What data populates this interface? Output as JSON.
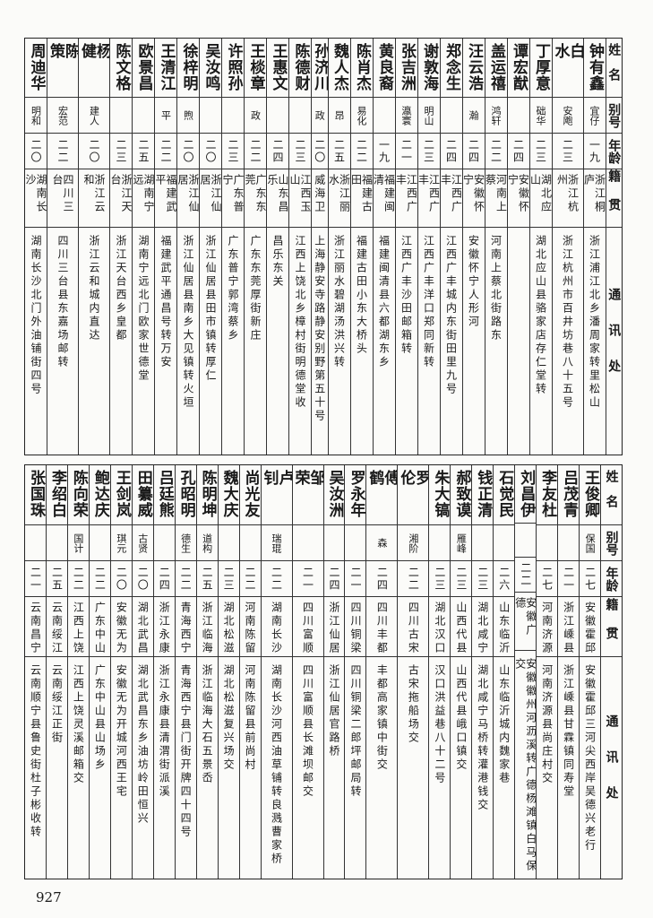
{
  "headers": {
    "name": "姓名",
    "alias": "别号",
    "age": "年龄",
    "origin": "籍贯",
    "address": "通讯处"
  },
  "top_table": [
    {
      "name": "钟有鑫",
      "alias": "宜仔",
      "age": "一九",
      "origin": "浙江桐庐",
      "address": "浙江浦江北乡潘周家转里松山"
    },
    {
      "name": "白水",
      "alias": "安飑",
      "age": "二三",
      "origin": "浙江杭州",
      "address": "浙江杭州市百井坊巷八十五号"
    },
    {
      "name": "丁厚意",
      "alias": "础华",
      "age": "二三",
      "origin": "湖北应山",
      "address": "湖北应山县骆家店存仁堂转"
    },
    {
      "name": "谭宏猷",
      "alias": "",
      "age": "二四",
      "origin": "安徽怀宁",
      "address": ""
    },
    {
      "name": "盖运禧",
      "alias": "鸿轩",
      "age": "二二",
      "origin": "河南上蔡",
      "address": "河南上蔡北街路东"
    },
    {
      "name": "汪云浩",
      "alias": "瀚",
      "age": "二四",
      "origin": "安徽怀宁",
      "address": "安徽怀宁人形河"
    },
    {
      "name": "郑念生",
      "alias": "",
      "age": "二四",
      "origin": "江西广丰",
      "address": "江西广丰城内东街田里九号"
    },
    {
      "name": "谢敦海",
      "alias": "明山",
      "age": "二三",
      "origin": "江西广丰",
      "address": "江西广丰洋口郑同新转"
    },
    {
      "name": "张吉洲",
      "alias": "瀛寰",
      "age": "二一",
      "origin": "江西广丰",
      "address": "江西广丰沙田邮箱转"
    },
    {
      "name": "黄良裔",
      "alias": "",
      "age": "一九",
      "origin": "福建闽清",
      "address": "福建闽清县六都湖东乡"
    },
    {
      "name": "陈肖杰",
      "alias": "易化",
      "age": "二二",
      "origin": "福建古田",
      "address": "福建古田小东大桥头"
    },
    {
      "name": "魏人杰",
      "alias": "昂",
      "age": "二五",
      "origin": "浙江丽水",
      "address": "浙江丽水碧湖汤洪兴转"
    },
    {
      "name": "孙济川",
      "alias": "政",
      "age": "二〇",
      "origin": "威海卫",
      "address": "上海静安寺路静安别野第五十号"
    },
    {
      "name": "陈德财",
      "alias": "",
      "age": "二三",
      "origin": "江西玉山",
      "address": "江西上饶北乡樟村街明德堂收"
    },
    {
      "name": "王惠文",
      "alias": "",
      "age": "二四",
      "origin": "山东昌乐",
      "address": "昌乐东关"
    },
    {
      "name": "王棪章",
      "alias": "政",
      "age": "二二",
      "origin": "广东东莞",
      "address": "广东东莞厚街新庄"
    },
    {
      "name": "许照孙",
      "alias": "",
      "age": "二三",
      "origin": "广东普宁",
      "address": "广东普宁郭湾蔡乡"
    },
    {
      "name": "吴汝鸣",
      "alias": "",
      "age": "二〇",
      "origin": "浙江仙居",
      "address": "浙江仙居县田市镇转厚仁"
    },
    {
      "name": "徐梓明",
      "alias": "煦",
      "age": "二〇",
      "origin": "浙江仙居",
      "address": "浙江仙居县南乡大见镇转火垣"
    },
    {
      "name": "王清江",
      "alias": "平",
      "age": "二二",
      "origin": "福建武平",
      "address": "福建武平通昌号转万安"
    },
    {
      "name": "欧景昌",
      "alias": "",
      "age": "二五",
      "origin": "湖南宁远",
      "address": "湖南宁远北门欧家世德堂"
    },
    {
      "name": "陈文格",
      "alias": "",
      "age": "二三",
      "origin": "浙江天台",
      "address": "浙江天台西乡皇都"
    },
    {
      "name": "杨健",
      "alias": "建人",
      "age": "二〇",
      "origin": "浙江云和",
      "address": "浙江云和城内直达"
    },
    {
      "name": "陈策",
      "alias": "宏范",
      "age": "二二",
      "origin": "四川三台",
      "address": "四川三台县东嘉场邮转"
    },
    {
      "name": "周迪华",
      "alias": "明和",
      "age": "二〇",
      "origin": "湖南长沙",
      "address": "湖南长沙北门外油铺街四号"
    }
  ],
  "bottom_table": [
    {
      "name": "王俊卿",
      "alias": "保国",
      "age": "二七",
      "origin": "安徽霍邱",
      "address": "安徽霍邱三河尖西岸吴德兴老行"
    },
    {
      "name": "吕茂青",
      "alias": "",
      "age": "二一",
      "origin": "浙江嵊县",
      "address": "浙江嵊县甘霖镇同寿堂"
    },
    {
      "name": "李友杜",
      "alias": "",
      "age": "二七",
      "origin": "河南济源",
      "address": "河南济源县尚庄村交"
    },
    {
      "name": "刘昌伊",
      "alias": "",
      "age": "二二",
      "origin": "安徽广德",
      "address": "安徽徽州河沥溪转广德杨滩镇白马保交"
    },
    {
      "name": "石觉民",
      "alias": "",
      "age": "二六",
      "origin": "山东临沂",
      "address": "山东临沂城内魏家巷"
    },
    {
      "name": "钱正清",
      "alias": "",
      "age": "二三",
      "origin": "湖北咸宁",
      "address": "湖北咸宁马桥转灌港钱交"
    },
    {
      "name": "郝致谟",
      "alias": "雁峰",
      "age": "二三",
      "origin": "山西代县",
      "address": "山西代县峨口镇交"
    },
    {
      "name": "朱大镐",
      "alias": "",
      "age": "二三",
      "origin": "湖北汉口",
      "address": "汉口洪益巷八十二号"
    },
    {
      "name": "罗伦",
      "alias": "湘阶",
      "age": "二二",
      "origin": "四川古宋",
      "address": "古宋拖船场交"
    },
    {
      "name": "傅鹤",
      "alias": "森",
      "age": "二四",
      "origin": "四川丰都",
      "address": "丰都高家镇中街交"
    },
    {
      "name": "罗永年",
      "alias": "",
      "age": "二一",
      "origin": "四川铜梁",
      "address": "四川铜梁二郎坪邮局转"
    },
    {
      "name": "吴汝洲",
      "alias": "",
      "age": "二四",
      "origin": "浙江仙居",
      "address": "浙江仙居官路桥"
    },
    {
      "name": "邹荣",
      "alias": "",
      "age": "二一",
      "origin": "四川富顺",
      "address": "四川富顺县长滩坝邮交"
    },
    {
      "name": "卢钊",
      "alias": "瑞琨",
      "age": "二二",
      "origin": "湖南长沙",
      "address": "湖南长沙河西油草铺转良溅曹家桥"
    },
    {
      "name": "尚光友",
      "alias": "",
      "age": "二二",
      "origin": "河南陈留",
      "address": "河南陈留县前尚村"
    },
    {
      "name": "魏大庆",
      "alias": "",
      "age": "二三",
      "origin": "湖北松滋",
      "address": "湖北松滋复兴场交"
    },
    {
      "name": "陈明坤",
      "alias": "道构",
      "age": "二五",
      "origin": "浙江临海",
      "address": "浙江临海大石五景岙"
    },
    {
      "name": "孔昭明",
      "alias": "德生",
      "age": "二二",
      "origin": "青海西宁",
      "address": "青海西宁县门街开牌四十四号"
    },
    {
      "name": "吕廷熊",
      "alias": "",
      "age": "二四",
      "origin": "浙江永康",
      "address": "浙江永康县清渭街派溪"
    },
    {
      "name": "田纂威",
      "alias": "古贤",
      "age": "二〇",
      "origin": "湖北武昌",
      "address": "湖北武昌东乡油坊岭田恒兴"
    },
    {
      "name": "王剑岚",
      "alias": "琪元",
      "age": "二〇",
      "origin": "安徽无为",
      "address": "安徽无为开城河西王宅"
    },
    {
      "name": "鲍达庆",
      "alias": "",
      "age": "二二",
      "origin": "广东中山",
      "address": "广东中山县山场乡"
    },
    {
      "name": "陈向荣",
      "alias": "国计",
      "age": "二二",
      "origin": "江西上饶",
      "address": "江西上饶灵溪邮箱交"
    },
    {
      "name": "李绍白",
      "alias": "",
      "age": "二五",
      "origin": "云南绥江",
      "address": "云南绥江正街"
    },
    {
      "name": "张国珠",
      "alias": "",
      "age": "二一",
      "origin": "云南昌宁",
      "address": "云南顺宁县鲁史街杜子彬收转"
    }
  ],
  "page_number": "927"
}
